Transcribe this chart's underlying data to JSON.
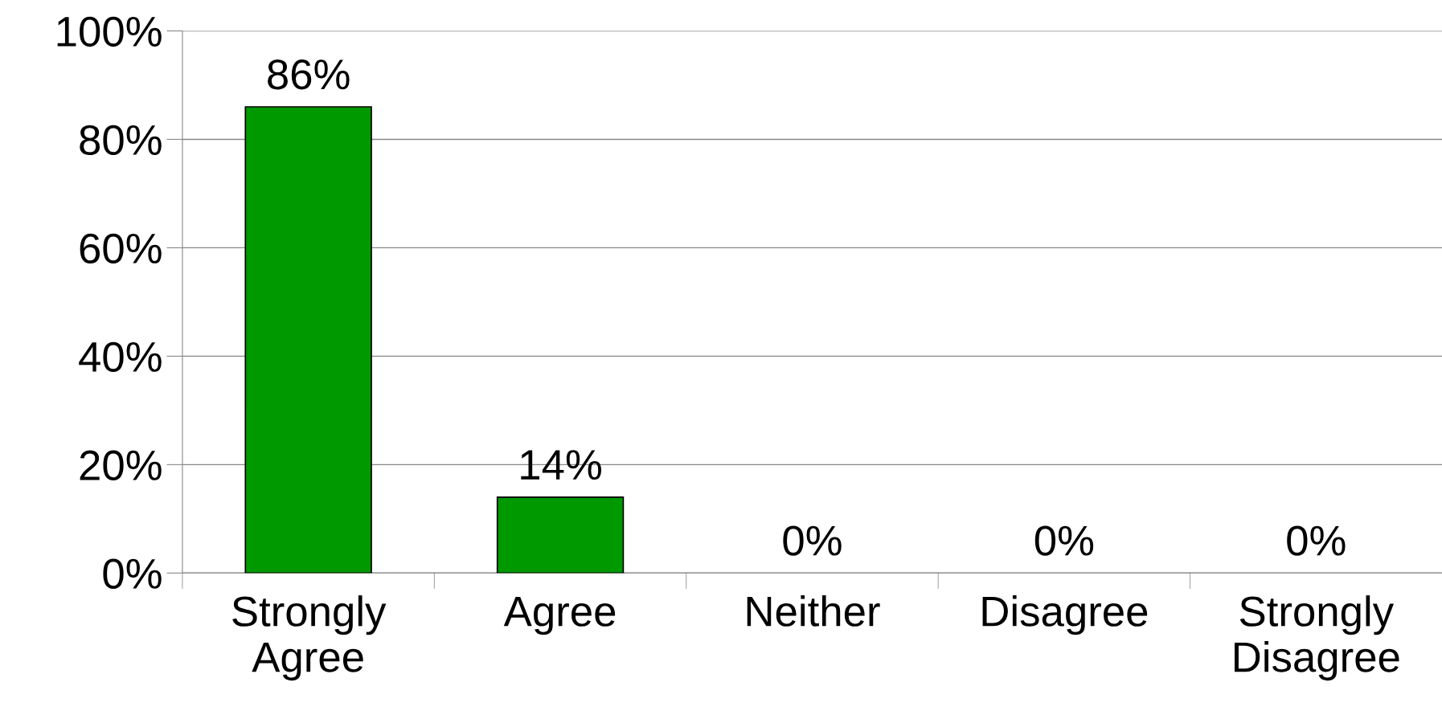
{
  "chart_data": {
    "type": "bar",
    "categories": [
      "Strongly\nAgree",
      "Agree",
      "Neither",
      "Disagree",
      "Strongly\nDisagree"
    ],
    "values": [
      86,
      14,
      0,
      0,
      0
    ],
    "value_labels": [
      "86%",
      "14%",
      "0%",
      "0%",
      "0%"
    ],
    "color": "#009900",
    "ylim": [
      0,
      100
    ],
    "yticks": [
      {
        "value": 0,
        "label": "0%"
      },
      {
        "value": 20,
        "label": "20%"
      },
      {
        "value": 40,
        "label": "40%"
      },
      {
        "value": 60,
        "label": "60%"
      },
      {
        "value": 80,
        "label": "80%"
      },
      {
        "value": 100,
        "label": "100%"
      }
    ],
    "grid": "y",
    "legend": false
  }
}
